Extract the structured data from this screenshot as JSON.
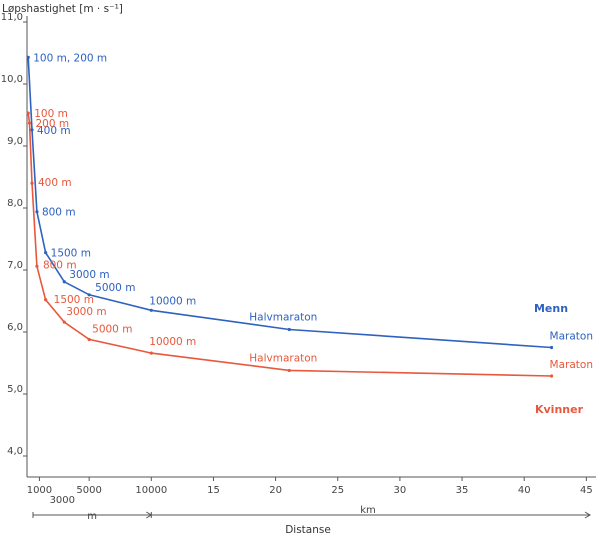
{
  "chart_data": {
    "type": "line",
    "ylabel": "Løpshastighet [m · s⁻¹]",
    "xlabel": "Distanse",
    "ylim": [
      4.0,
      11.0
    ],
    "y_ticks": [
      "4,0",
      "5,0",
      "6,0",
      "7,0",
      "8,0",
      "9,0",
      "10,0",
      "11,0"
    ],
    "x_ticks_m": [
      "1000",
      "3000",
      "5000",
      "10000"
    ],
    "x_ticks_km": [
      "15",
      "20",
      "25",
      "30",
      "35",
      "40",
      "45"
    ],
    "x_unit_m": "m",
    "x_unit_km": "km",
    "grid": false,
    "series": [
      {
        "name": "Menn",
        "color": "#2e62c0",
        "points": [
          {
            "km": 0.1,
            "value": 10.43,
            "label": "100 m, 200 m"
          },
          {
            "km": 0.4,
            "value": 9.26,
            "label": "400 m"
          },
          {
            "km": 0.8,
            "value": 7.94,
            "label": "800 m"
          },
          {
            "km": 1.5,
            "value": 7.28,
            "label": "1500 m"
          },
          {
            "km": 3.0,
            "value": 6.81,
            "label": "3000 m"
          },
          {
            "km": 5.0,
            "value": 6.6,
            "label": "5000 m"
          },
          {
            "km": 10.0,
            "value": 6.35,
            "label": "10000 m"
          },
          {
            "km": 21.1,
            "value": 6.04,
            "label": "Halvmaraton"
          },
          {
            "km": 42.2,
            "value": 5.75,
            "label": "Maraton"
          }
        ]
      },
      {
        "name": "Kvinner",
        "color": "#e8583c",
        "points": [
          {
            "km": 0.1,
            "value": 9.53,
            "label": "100 m"
          },
          {
            "km": 0.2,
            "value": 9.37,
            "label": "200 m"
          },
          {
            "km": 0.4,
            "value": 8.4,
            "label": "400 m"
          },
          {
            "km": 0.8,
            "value": 7.06,
            "label": "800 m"
          },
          {
            "km": 1.5,
            "value": 6.52,
            "label": "1500 m"
          },
          {
            "km": 3.0,
            "value": 6.16,
            "label": "3000 m"
          },
          {
            "km": 5.0,
            "value": 5.88,
            "label": "5000 m"
          },
          {
            "km": 10.0,
            "value": 5.66,
            "label": "10000 m"
          },
          {
            "km": 21.1,
            "value": 5.38,
            "label": "Halvmaraton"
          },
          {
            "km": 42.2,
            "value": 5.29,
            "label": "Maraton"
          }
        ]
      }
    ]
  }
}
